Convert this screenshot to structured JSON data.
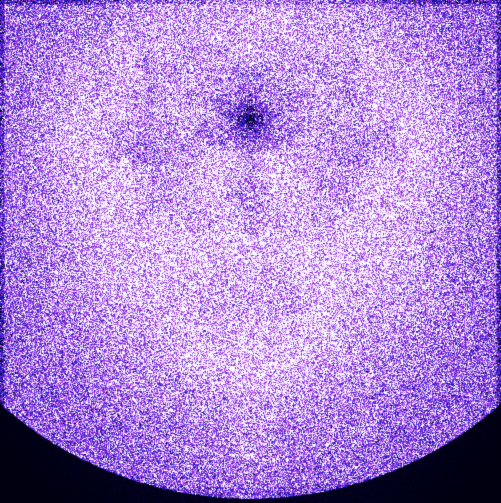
{
  "image": {
    "subject": "buddhabrot-fractal",
    "palette": {
      "background": "#000010",
      "low": "#1a16c8",
      "mid": "#a63ce6",
      "high": "#ffffff"
    }
  }
}
